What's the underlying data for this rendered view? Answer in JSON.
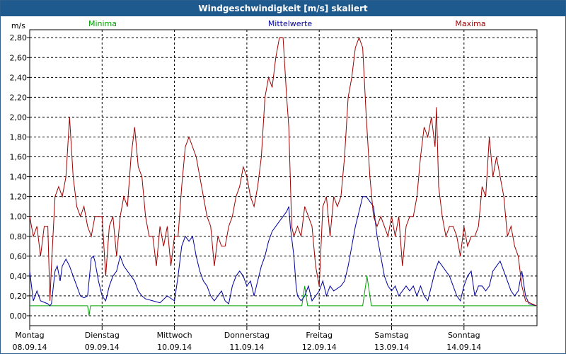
{
  "window": {
    "title": "Windgeschwindigkeit [m/s] skaliert"
  },
  "chart_data": {
    "type": "line",
    "ylabel": "m/s",
    "ylim": [
      -0.1,
      2.88
    ],
    "yticks": [
      "2,80",
      "2,60",
      "2,40",
      "2,20",
      "2,00",
      "1,80",
      "1,60",
      "1,40",
      "1,20",
      "1,00",
      "0,80",
      "0,60",
      "0,40",
      "0,20",
      "0,00"
    ],
    "ytick_values": [
      2.8,
      2.6,
      2.4,
      2.2,
      2.0,
      1.8,
      1.6,
      1.4,
      1.2,
      1.0,
      0.8,
      0.6,
      0.4,
      0.2,
      0.0
    ],
    "grid": true,
    "legend_position": "top",
    "days": [
      {
        "day": "Montag",
        "date": "08.09.14"
      },
      {
        "day": "Dienstag",
        "date": "09.09.14"
      },
      {
        "day": "Mittwoch",
        "date": "10.09.14"
      },
      {
        "day": "Donnerstag",
        "date": "11.09.14"
      },
      {
        "day": "Freitag",
        "date": "12.09.14"
      },
      {
        "day": "Samstag",
        "date": "13.09.14"
      },
      {
        "day": "Sonntag",
        "date": "14.09.14"
      }
    ],
    "series": [
      {
        "name": "Minima",
        "color": "#00a000",
        "points": [
          [
            0,
            0.1
          ],
          [
            0.8,
            0.1
          ],
          [
            0.82,
            0.0
          ],
          [
            0.84,
            0.1
          ],
          [
            3.76,
            0.1
          ],
          [
            3.8,
            0.3
          ],
          [
            3.84,
            0.1
          ],
          [
            4.6,
            0.1
          ],
          [
            4.66,
            0.4
          ],
          [
            4.72,
            0.1
          ],
          [
            7,
            0.1
          ]
        ]
      },
      {
        "name": "Mittelwerte",
        "color": "#0000a0",
        "points": [
          [
            0,
            0.45
          ],
          [
            0.05,
            0.15
          ],
          [
            0.1,
            0.25
          ],
          [
            0.15,
            0.15
          ],
          [
            0.25,
            0.12
          ],
          [
            0.28,
            0.1
          ],
          [
            0.3,
            0.12
          ],
          [
            0.35,
            0.45
          ],
          [
            0.38,
            0.5
          ],
          [
            0.42,
            0.35
          ],
          [
            0.45,
            0.5
          ],
          [
            0.5,
            0.57
          ],
          [
            0.55,
            0.5
          ],
          [
            0.6,
            0.4
          ],
          [
            0.65,
            0.3
          ],
          [
            0.7,
            0.2
          ],
          [
            0.75,
            0.18
          ],
          [
            0.8,
            0.2
          ],
          [
            0.85,
            0.58
          ],
          [
            0.88,
            0.6
          ],
          [
            0.9,
            0.55
          ],
          [
            0.95,
            0.35
          ],
          [
            1.0,
            0.2
          ],
          [
            1.05,
            0.15
          ],
          [
            1.1,
            0.3
          ],
          [
            1.15,
            0.4
          ],
          [
            1.2,
            0.45
          ],
          [
            1.25,
            0.6
          ],
          [
            1.3,
            0.5
          ],
          [
            1.35,
            0.45
          ],
          [
            1.4,
            0.4
          ],
          [
            1.45,
            0.35
          ],
          [
            1.5,
            0.25
          ],
          [
            1.55,
            0.2
          ],
          [
            1.6,
            0.17
          ],
          [
            1.7,
            0.15
          ],
          [
            1.8,
            0.13
          ],
          [
            1.9,
            0.2
          ],
          [
            2.0,
            0.15
          ],
          [
            2.05,
            0.4
          ],
          [
            2.1,
            0.7
          ],
          [
            2.15,
            0.8
          ],
          [
            2.2,
            0.75
          ],
          [
            2.25,
            0.8
          ],
          [
            2.3,
            0.6
          ],
          [
            2.35,
            0.45
          ],
          [
            2.4,
            0.35
          ],
          [
            2.45,
            0.3
          ],
          [
            2.5,
            0.2
          ],
          [
            2.55,
            0.15
          ],
          [
            2.6,
            0.2
          ],
          [
            2.65,
            0.25
          ],
          [
            2.7,
            0.15
          ],
          [
            2.75,
            0.12
          ],
          [
            2.8,
            0.3
          ],
          [
            2.85,
            0.4
          ],
          [
            2.9,
            0.45
          ],
          [
            2.95,
            0.4
          ],
          [
            3.0,
            0.3
          ],
          [
            3.05,
            0.35
          ],
          [
            3.1,
            0.2
          ],
          [
            3.15,
            0.35
          ],
          [
            3.2,
            0.5
          ],
          [
            3.25,
            0.6
          ],
          [
            3.3,
            0.75
          ],
          [
            3.35,
            0.85
          ],
          [
            3.4,
            0.9
          ],
          [
            3.45,
            0.95
          ],
          [
            3.5,
            1.0
          ],
          [
            3.55,
            1.05
          ],
          [
            3.58,
            1.1
          ],
          [
            3.6,
            0.9
          ],
          [
            3.65,
            0.6
          ],
          [
            3.68,
            0.3
          ],
          [
            3.7,
            0.2
          ],
          [
            3.75,
            0.15
          ],
          [
            3.8,
            0.2
          ],
          [
            3.85,
            0.3
          ],
          [
            3.9,
            0.15
          ],
          [
            3.95,
            0.2
          ],
          [
            4.0,
            0.25
          ],
          [
            4.05,
            0.35
          ],
          [
            4.1,
            0.2
          ],
          [
            4.15,
            0.3
          ],
          [
            4.2,
            0.25
          ],
          [
            4.3,
            0.3
          ],
          [
            4.35,
            0.35
          ],
          [
            4.4,
            0.5
          ],
          [
            4.45,
            0.7
          ],
          [
            4.5,
            0.9
          ],
          [
            4.55,
            1.05
          ],
          [
            4.6,
            1.2
          ],
          [
            4.65,
            1.2
          ],
          [
            4.7,
            1.15
          ],
          [
            4.75,
            1.1
          ],
          [
            4.8,
            0.8
          ],
          [
            4.85,
            0.6
          ],
          [
            4.9,
            0.4
          ],
          [
            4.95,
            0.3
          ],
          [
            5.0,
            0.25
          ],
          [
            5.05,
            0.3
          ],
          [
            5.1,
            0.2
          ],
          [
            5.15,
            0.25
          ],
          [
            5.2,
            0.3
          ],
          [
            5.25,
            0.25
          ],
          [
            5.3,
            0.3
          ],
          [
            5.35,
            0.2
          ],
          [
            5.4,
            0.3
          ],
          [
            5.45,
            0.2
          ],
          [
            5.5,
            0.15
          ],
          [
            5.55,
            0.3
          ],
          [
            5.6,
            0.45
          ],
          [
            5.65,
            0.55
          ],
          [
            5.7,
            0.5
          ],
          [
            5.75,
            0.45
          ],
          [
            5.8,
            0.4
          ],
          [
            5.85,
            0.3
          ],
          [
            5.9,
            0.2
          ],
          [
            5.95,
            0.15
          ],
          [
            6.0,
            0.3
          ],
          [
            6.05,
            0.4
          ],
          [
            6.1,
            0.45
          ],
          [
            6.15,
            0.2
          ],
          [
            6.2,
            0.3
          ],
          [
            6.25,
            0.3
          ],
          [
            6.3,
            0.25
          ],
          [
            6.35,
            0.3
          ],
          [
            6.4,
            0.45
          ],
          [
            6.45,
            0.5
          ],
          [
            6.5,
            0.55
          ],
          [
            6.55,
            0.45
          ],
          [
            6.6,
            0.35
          ],
          [
            6.65,
            0.25
          ],
          [
            6.7,
            0.2
          ],
          [
            6.75,
            0.25
          ],
          [
            6.8,
            0.45
          ],
          [
            6.85,
            0.2
          ],
          [
            6.9,
            0.12
          ],
          [
            7,
            0.1
          ]
        ]
      },
      {
        "name": "Maxima",
        "color": "#a00000",
        "points": [
          [
            0,
            1.0
          ],
          [
            0.05,
            0.8
          ],
          [
            0.1,
            0.9
          ],
          [
            0.15,
            0.6
          ],
          [
            0.2,
            0.9
          ],
          [
            0.25,
            0.9
          ],
          [
            0.28,
            0.15
          ],
          [
            0.3,
            0.5
          ],
          [
            0.35,
            1.2
          ],
          [
            0.4,
            1.3
          ],
          [
            0.45,
            1.2
          ],
          [
            0.5,
            1.4
          ],
          [
            0.55,
            2.0
          ],
          [
            0.6,
            1.4
          ],
          [
            0.65,
            1.1
          ],
          [
            0.7,
            1.0
          ],
          [
            0.75,
            1.1
          ],
          [
            0.8,
            0.9
          ],
          [
            0.85,
            0.8
          ],
          [
            0.9,
            1.0
          ],
          [
            0.95,
            1.0
          ],
          [
            1.0,
            1.0
          ],
          [
            1.05,
            0.4
          ],
          [
            1.1,
            0.9
          ],
          [
            1.15,
            1.0
          ],
          [
            1.2,
            0.6
          ],
          [
            1.25,
            1.0
          ],
          [
            1.3,
            1.2
          ],
          [
            1.35,
            1.1
          ],
          [
            1.4,
            1.6
          ],
          [
            1.45,
            1.9
          ],
          [
            1.5,
            1.5
          ],
          [
            1.55,
            1.4
          ],
          [
            1.6,
            1.0
          ],
          [
            1.65,
            0.8
          ],
          [
            1.7,
            0.8
          ],
          [
            1.75,
            0.5
          ],
          [
            1.8,
            0.9
          ],
          [
            1.85,
            0.7
          ],
          [
            1.9,
            0.9
          ],
          [
            1.95,
            0.5
          ],
          [
            2.0,
            0.8
          ],
          [
            2.05,
            0.8
          ],
          [
            2.1,
            1.3
          ],
          [
            2.15,
            1.7
          ],
          [
            2.2,
            1.8
          ],
          [
            2.25,
            1.7
          ],
          [
            2.3,
            1.6
          ],
          [
            2.35,
            1.4
          ],
          [
            2.4,
            1.2
          ],
          [
            2.45,
            1.0
          ],
          [
            2.5,
            0.9
          ],
          [
            2.55,
            0.5
          ],
          [
            2.6,
            0.8
          ],
          [
            2.65,
            0.7
          ],
          [
            2.7,
            0.7
          ],
          [
            2.75,
            0.9
          ],
          [
            2.8,
            1.0
          ],
          [
            2.85,
            1.2
          ],
          [
            2.9,
            1.3
          ],
          [
            2.95,
            1.5
          ],
          [
            3.0,
            1.4
          ],
          [
            3.05,
            1.2
          ],
          [
            3.1,
            1.1
          ],
          [
            3.15,
            1.3
          ],
          [
            3.2,
            1.6
          ],
          [
            3.25,
            2.2
          ],
          [
            3.3,
            2.4
          ],
          [
            3.35,
            2.3
          ],
          [
            3.4,
            2.6
          ],
          [
            3.45,
            2.8
          ],
          [
            3.5,
            2.8
          ],
          [
            3.55,
            2.2
          ],
          [
            3.58,
            1.9
          ],
          [
            3.62,
            0.9
          ],
          [
            3.65,
            0.8
          ],
          [
            3.7,
            0.9
          ],
          [
            3.75,
            0.8
          ],
          [
            3.8,
            1.1
          ],
          [
            3.85,
            1.0
          ],
          [
            3.9,
            0.9
          ],
          [
            3.95,
            0.5
          ],
          [
            4.0,
            0.3
          ],
          [
            4.05,
            1.1
          ],
          [
            4.1,
            1.2
          ],
          [
            4.15,
            0.8
          ],
          [
            4.2,
            1.2
          ],
          [
            4.25,
            1.1
          ],
          [
            4.3,
            1.2
          ],
          [
            4.35,
            1.6
          ],
          [
            4.4,
            2.2
          ],
          [
            4.45,
            2.4
          ],
          [
            4.5,
            2.7
          ],
          [
            4.55,
            2.8
          ],
          [
            4.6,
            2.7
          ],
          [
            4.65,
            2.0
          ],
          [
            4.7,
            1.4
          ],
          [
            4.75,
            1.0
          ],
          [
            4.8,
            0.9
          ],
          [
            4.85,
            1.0
          ],
          [
            4.9,
            0.9
          ],
          [
            4.95,
            0.8
          ],
          [
            5.0,
            1.0
          ],
          [
            5.05,
            0.8
          ],
          [
            5.1,
            1.0
          ],
          [
            5.15,
            0.5
          ],
          [
            5.2,
            0.9
          ],
          [
            5.25,
            1.0
          ],
          [
            5.3,
            1.0
          ],
          [
            5.35,
            1.2
          ],
          [
            5.4,
            1.6
          ],
          [
            5.45,
            1.9
          ],
          [
            5.5,
            1.8
          ],
          [
            5.55,
            2.0
          ],
          [
            5.6,
            1.7
          ],
          [
            5.62,
            2.1
          ],
          [
            5.65,
            1.3
          ],
          [
            5.7,
            1.0
          ],
          [
            5.75,
            0.8
          ],
          [
            5.8,
            0.9
          ],
          [
            5.85,
            0.9
          ],
          [
            5.9,
            0.8
          ],
          [
            5.95,
            0.6
          ],
          [
            6.0,
            0.9
          ],
          [
            6.05,
            0.7
          ],
          [
            6.1,
            0.8
          ],
          [
            6.15,
            0.8
          ],
          [
            6.2,
            0.9
          ],
          [
            6.25,
            1.3
          ],
          [
            6.3,
            1.2
          ],
          [
            6.35,
            1.8
          ],
          [
            6.4,
            1.4
          ],
          [
            6.45,
            1.6
          ],
          [
            6.5,
            1.4
          ],
          [
            6.55,
            1.2
          ],
          [
            6.6,
            0.8
          ],
          [
            6.65,
            0.9
          ],
          [
            6.7,
            0.7
          ],
          [
            6.75,
            0.6
          ],
          [
            6.8,
            0.3
          ],
          [
            6.85,
            0.15
          ],
          [
            7,
            0.1
          ]
        ]
      }
    ]
  }
}
